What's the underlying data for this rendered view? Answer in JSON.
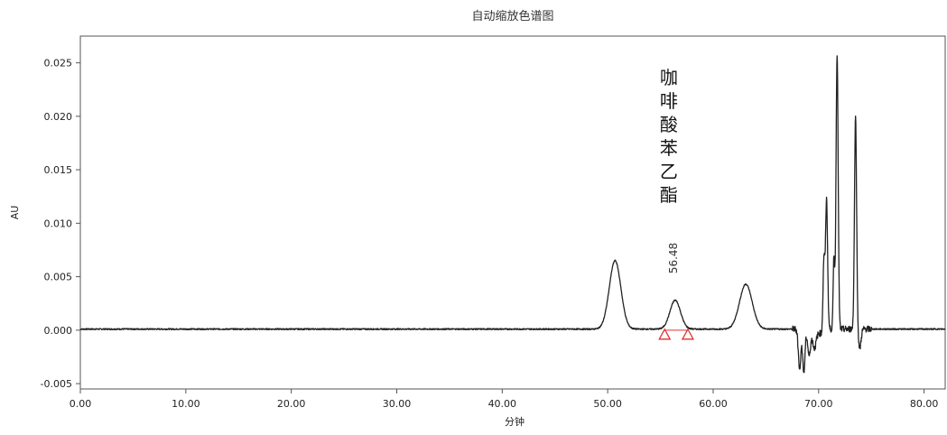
{
  "chart_data": {
    "type": "line",
    "title": "自动缩放色谱图",
    "xlabel": "分钟",
    "ylabel": "AU",
    "xlim": [
      0,
      82
    ],
    "ylim": [
      -0.0055,
      0.0275
    ],
    "x_ticks": [
      0,
      10,
      20,
      30,
      40,
      50,
      60,
      70,
      80
    ],
    "x_tick_labels": [
      "0.00",
      "10.00",
      "20.00",
      "30.00",
      "40.00",
      "50.00",
      "60.00",
      "70.00",
      "80.00"
    ],
    "y_ticks": [
      -0.005,
      0,
      0.005,
      0.01,
      0.015,
      0.02,
      0.025
    ],
    "y_tick_labels": [
      "-0.005",
      "0.000",
      "0.005",
      "0.010",
      "0.015",
      "0.020",
      "0.025"
    ],
    "grid": false,
    "series": [
      {
        "color": "#222222",
        "baseline": 0.0001,
        "peaks": [
          {
            "center": 50.7,
            "height": 0.0064,
            "width": 0.55
          },
          {
            "center": 56.4,
            "height": 0.0027,
            "width": 0.5
          },
          {
            "center": 63.1,
            "height": 0.0042,
            "width": 0.6
          },
          {
            "center": 70.5,
            "height": 0.0064,
            "width": 0.08
          },
          {
            "center": 70.75,
            "height": 0.0121,
            "width": 0.1
          },
          {
            "center": 71.45,
            "height": 0.0068,
            "width": 0.07
          },
          {
            "center": 71.75,
            "height": 0.0258,
            "width": 0.1
          },
          {
            "center": 73.5,
            "height": 0.0198,
            "width": 0.1
          }
        ],
        "dips": [
          {
            "center": 68.2,
            "depth": 0.0032,
            "width": 0.12
          },
          {
            "center": 68.6,
            "depth": 0.0037,
            "width": 0.1
          },
          {
            "center": 69.1,
            "depth": 0.0021,
            "width": 0.12
          },
          {
            "center": 69.6,
            "depth": 0.0014,
            "width": 0.15
          },
          {
            "center": 73.9,
            "depth": 0.0018,
            "width": 0.12
          }
        ]
      }
    ],
    "annotations": [
      {
        "label": "咖啡酸苯乙酯",
        "retention_time_label": "56.48",
        "x": 56.4
      }
    ],
    "integration_markers": {
      "color": "#e03030",
      "x": [
        55.4,
        57.6
      ]
    }
  }
}
